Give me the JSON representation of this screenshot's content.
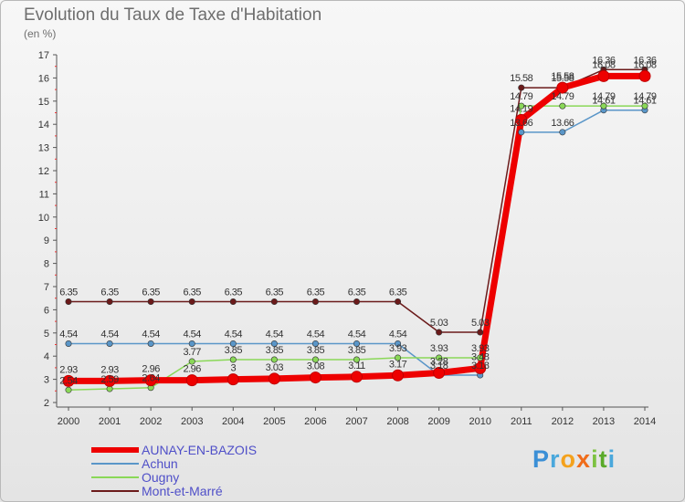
{
  "title": "Evolution du Taux de Taxe d'Habitation",
  "subtitle": "(en %)",
  "brand": {
    "letters": [
      {
        "ch": "P",
        "color": "#3b8fd6"
      },
      {
        "ch": "r",
        "color": "#4aa8dc"
      },
      {
        "ch": "o",
        "color": "#f4a21d"
      },
      {
        "ch": "x",
        "color": "#f06c1a"
      },
      {
        "ch": "i",
        "color": "#7dc242"
      },
      {
        "ch": "t",
        "color": "#5aaa2a"
      },
      {
        "ch": "i",
        "color": "#4aa8dc"
      }
    ]
  },
  "chart_data": {
    "type": "line",
    "title": "Evolution du Taux de Taxe d'Habitation",
    "ylabel": "(en %)",
    "xlabel": "",
    "x": [
      "2000",
      "2001",
      "2002",
      "2003",
      "2004",
      "2005",
      "2006",
      "2007",
      "2008",
      "2009",
      "2010",
      "2011",
      "2012",
      "2013",
      "2014"
    ],
    "ylim": [
      2,
      17
    ],
    "yticks": [
      "2",
      "3",
      "4",
      "5",
      "6",
      "7",
      "8",
      "9",
      "10",
      "11",
      "12",
      "13",
      "14",
      "15",
      "16",
      "17"
    ],
    "grid": false,
    "legend": "bottom-left",
    "series": [
      {
        "name": "Mont-et-Marré",
        "color": "#6b1a1a",
        "width": 1.5,
        "values": [
          6.35,
          6.35,
          6.35,
          6.35,
          6.35,
          6.35,
          6.35,
          6.35,
          6.35,
          5.03,
          5.03,
          15.58,
          15.58,
          16.36,
          16.36
        ],
        "labels": [
          "6.35",
          "6.35",
          "6.35",
          "6.35",
          "6.35",
          "6.35",
          "6.35",
          "6.35",
          "6.35",
          "5.03",
          "5.03",
          "15.58",
          "15.58",
          "16.36",
          "16.36"
        ]
      },
      {
        "name": "Achun",
        "color": "#5a96c8",
        "width": 1.5,
        "values": [
          4.54,
          4.54,
          4.54,
          4.54,
          4.54,
          4.54,
          4.54,
          4.54,
          4.54,
          3.18,
          3.18,
          13.66,
          13.66,
          14.61,
          14.61
        ],
        "labels": [
          "4.54",
          "4.54",
          "4.54",
          "4.54",
          "4.54",
          "4.54",
          "4.54",
          "4.54",
          "4.54",
          "3.18",
          "3.18",
          "13.66",
          "13.66",
          "14.61",
          "14.61"
        ]
      },
      {
        "name": "Ougny",
        "color": "#8ad858",
        "width": 1.5,
        "values": [
          2.54,
          2.59,
          2.64,
          3.77,
          3.85,
          3.85,
          3.85,
          3.85,
          3.93,
          3.93,
          3.93,
          14.79,
          14.79,
          14.79,
          14.79
        ],
        "labels": [
          "2.54",
          "2.59",
          "2.64",
          "3.77",
          "3.85",
          "3.85",
          "3.85",
          "3.85",
          "3.93",
          "3.93",
          "3.93",
          "14.79",
          "14.79",
          "14.79",
          "14.79"
        ]
      },
      {
        "name": "AUNAY-EN-BAZOIS",
        "color": "#ee0000",
        "width": 7,
        "values": [
          2.93,
          2.93,
          2.96,
          2.96,
          3.0,
          3.03,
          3.08,
          3.11,
          3.17,
          3.28,
          3.48,
          14.19,
          15.58,
          16.08,
          16.08
        ],
        "labels": [
          "2.93",
          "2.93",
          "2.96",
          "2.96",
          "3",
          "3.03",
          "3.08",
          "3.11",
          "3.17",
          "3.28",
          "3.48",
          "14.19",
          "15.58",
          "16.08",
          "16.08"
        ]
      }
    ]
  }
}
